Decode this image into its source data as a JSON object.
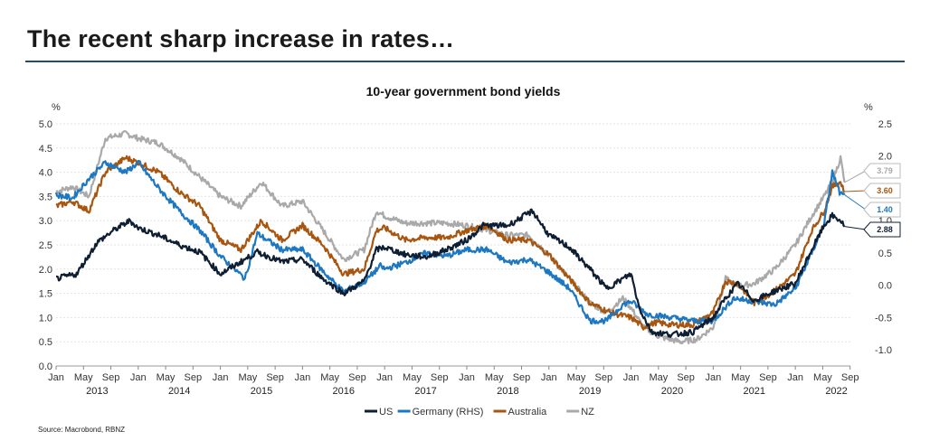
{
  "slide": {
    "title": "The recent sharp increase in rates…",
    "source": "Source: Macrobond, RBNZ"
  },
  "colors": {
    "us": "#0f1f33",
    "germany": "#1d77c1",
    "australia": "#a8560f",
    "nz": "#a9a9a9",
    "rule": "#1f4e6b"
  },
  "chart_data": {
    "type": "line",
    "title": "10-year government bond yields",
    "y_left_label": "%",
    "y_right_label": "%",
    "ylim_left": [
      0,
      5
    ],
    "ylim_right": [
      -1.25,
      2.5
    ],
    "y_left_ticks": [
      "0.0",
      "0.5",
      "1.0",
      "1.5",
      "2.0",
      "2.5",
      "3.0",
      "3.5",
      "4.0",
      "4.5",
      "5.0"
    ],
    "y_right_ticks": [
      "-1.0",
      "-0.5",
      "0.0",
      "0.5",
      "1.0",
      "1.5",
      "2.0",
      "2.5"
    ],
    "x_month_ticks": [
      "Jan",
      "May",
      "Sep",
      "Jan",
      "May",
      "Sep",
      "Jan",
      "May",
      "Sep",
      "Jan",
      "May",
      "Sep",
      "Jan",
      "May",
      "Sep",
      "Jan",
      "May",
      "Sep",
      "Jan",
      "May",
      "Sep",
      "Jan",
      "May",
      "Sep",
      "Jan",
      "May",
      "Sep",
      "Jan",
      "May",
      "Sep"
    ],
    "x_years": [
      "2013",
      "2014",
      "2015",
      "2016",
      "2017",
      "2018",
      "2019",
      "2020",
      "2021",
      "2022"
    ],
    "x_range": [
      2013.0,
      2022.67
    ],
    "series": [
      {
        "name": "US",
        "key": "us",
        "axis": "left",
        "x": [
          2013.0,
          2013.25,
          2013.5,
          2013.7,
          2013.9,
          2014.0,
          2014.25,
          2014.5,
          2014.75,
          2015.0,
          2015.2,
          2015.45,
          2015.75,
          2016.0,
          2016.25,
          2016.5,
          2016.75,
          2016.9,
          2017.0,
          2017.25,
          2017.5,
          2017.75,
          2018.0,
          2018.2,
          2018.5,
          2018.8,
          2019.0,
          2019.25,
          2019.5,
          2019.7,
          2020.0,
          2020.1,
          2020.25,
          2020.5,
          2020.75,
          2021.0,
          2021.15,
          2021.3,
          2021.5,
          2021.75,
          2022.0,
          2022.2,
          2022.35,
          2022.45,
          2022.55,
          2022.6
        ],
        "values": [
          1.8,
          1.9,
          2.55,
          2.8,
          3.0,
          2.85,
          2.7,
          2.5,
          2.35,
          1.9,
          2.1,
          2.35,
          2.15,
          2.2,
          1.8,
          1.5,
          1.75,
          2.4,
          2.45,
          2.3,
          2.25,
          2.4,
          2.6,
          2.9,
          2.9,
          3.2,
          2.7,
          2.45,
          2.0,
          1.6,
          1.9,
          1.2,
          0.7,
          0.65,
          0.7,
          1.0,
          1.4,
          1.7,
          1.35,
          1.55,
          1.7,
          2.4,
          2.9,
          3.1,
          3.0,
          2.88
        ]
      },
      {
        "name": "Germany (RHS)",
        "key": "germany",
        "axis": "right",
        "x": [
          2013.0,
          2013.2,
          2013.4,
          2013.6,
          2013.85,
          2014.0,
          2014.25,
          2014.5,
          2014.75,
          2015.0,
          2015.3,
          2015.45,
          2015.75,
          2016.0,
          2016.3,
          2016.5,
          2016.75,
          2016.95,
          2017.0,
          2017.25,
          2017.5,
          2017.75,
          2018.0,
          2018.25,
          2018.5,
          2018.75,
          2019.0,
          2019.25,
          2019.5,
          2019.7,
          2019.9,
          2020.0,
          2020.2,
          2020.5,
          2020.75,
          2021.0,
          2021.25,
          2021.5,
          2021.75,
          2022.0,
          2022.2,
          2022.35,
          2022.45,
          2022.55,
          2022.6
        ],
        "values": [
          1.4,
          1.35,
          1.65,
          1.9,
          1.75,
          1.9,
          1.5,
          1.15,
          0.85,
          0.45,
          0.1,
          0.8,
          0.55,
          0.55,
          0.15,
          -0.1,
          0.05,
          0.3,
          0.25,
          0.35,
          0.5,
          0.45,
          0.55,
          0.55,
          0.35,
          0.4,
          0.2,
          -0.05,
          -0.55,
          -0.55,
          -0.3,
          -0.25,
          -0.45,
          -0.5,
          -0.55,
          -0.55,
          -0.2,
          -0.25,
          -0.3,
          -0.05,
          0.5,
          0.95,
          1.75,
          1.4,
          1.4
        ]
      },
      {
        "name": "Australia",
        "key": "australia",
        "axis": "left",
        "x": [
          2013.0,
          2013.2,
          2013.4,
          2013.6,
          2013.85,
          2014.0,
          2014.25,
          2014.5,
          2014.75,
          2015.0,
          2015.25,
          2015.5,
          2015.75,
          2016.0,
          2016.25,
          2016.5,
          2016.75,
          2016.9,
          2017.0,
          2017.25,
          2017.5,
          2017.75,
          2018.0,
          2018.25,
          2018.5,
          2018.75,
          2019.0,
          2019.25,
          2019.5,
          2019.75,
          2020.0,
          2020.15,
          2020.3,
          2020.5,
          2020.75,
          2021.0,
          2021.15,
          2021.3,
          2021.5,
          2021.75,
          2022.0,
          2022.2,
          2022.35,
          2022.45,
          2022.55,
          2022.6
        ],
        "values": [
          3.3,
          3.4,
          3.2,
          4.0,
          4.3,
          4.2,
          4.0,
          3.6,
          3.3,
          2.6,
          2.4,
          3.0,
          2.6,
          2.9,
          2.5,
          1.9,
          2.0,
          2.8,
          2.85,
          2.6,
          2.65,
          2.65,
          2.8,
          2.9,
          2.6,
          2.6,
          2.3,
          1.8,
          1.3,
          1.1,
          1.0,
          0.8,
          0.9,
          0.85,
          0.85,
          1.1,
          1.75,
          1.7,
          1.3,
          1.55,
          1.9,
          2.8,
          3.2,
          3.7,
          3.8,
          3.6
        ]
      },
      {
        "name": "NZ",
        "key": "nz",
        "axis": "left",
        "x": [
          2013.0,
          2013.2,
          2013.4,
          2013.6,
          2013.85,
          2014.0,
          2014.25,
          2014.5,
          2014.75,
          2015.0,
          2015.25,
          2015.5,
          2015.75,
          2016.0,
          2016.25,
          2016.5,
          2016.75,
          2016.9,
          2017.0,
          2017.25,
          2017.5,
          2017.75,
          2018.0,
          2018.25,
          2018.5,
          2018.75,
          2019.0,
          2019.25,
          2019.5,
          2019.7,
          2019.9,
          2020.0,
          2020.15,
          2020.35,
          2020.6,
          2020.8,
          2021.0,
          2021.15,
          2021.3,
          2021.5,
          2021.75,
          2022.0,
          2022.2,
          2022.35,
          2022.45,
          2022.55,
          2022.6
        ],
        "values": [
          3.6,
          3.7,
          3.5,
          4.7,
          4.8,
          4.7,
          4.6,
          4.3,
          3.9,
          3.5,
          3.3,
          3.8,
          3.3,
          3.4,
          2.8,
          2.2,
          2.4,
          3.2,
          3.1,
          2.95,
          2.95,
          2.95,
          2.9,
          2.8,
          2.7,
          2.7,
          2.3,
          1.8,
          1.3,
          1.1,
          1.4,
          1.2,
          0.8,
          0.6,
          0.5,
          0.55,
          0.8,
          1.8,
          1.65,
          1.7,
          2.0,
          2.5,
          3.1,
          3.5,
          3.8,
          4.3,
          3.79
        ]
      }
    ],
    "end_labels": [
      {
        "key": "nz",
        "text": "3.79"
      },
      {
        "key": "australia",
        "text": "3.60"
      },
      {
        "key": "germany",
        "text": "1.40"
      },
      {
        "key": "us",
        "text": "2.88"
      }
    ],
    "legend": [
      {
        "key": "us",
        "label": "US"
      },
      {
        "key": "germany",
        "label": "Germany (RHS)"
      },
      {
        "key": "australia",
        "label": "Australia"
      },
      {
        "key": "nz",
        "label": "NZ"
      }
    ]
  }
}
